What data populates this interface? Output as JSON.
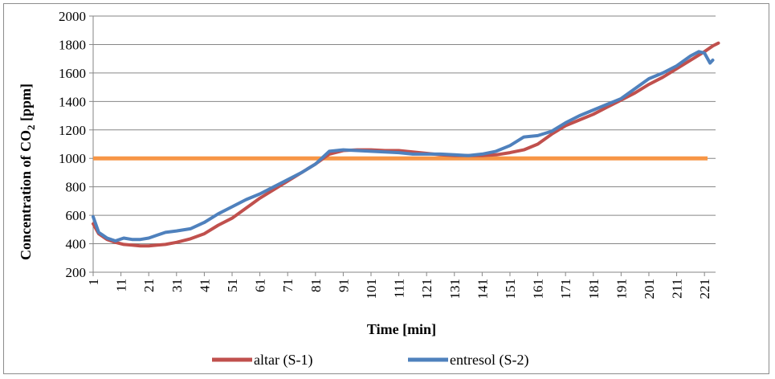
{
  "chart_data": {
    "type": "line",
    "xlabel": "Time [min]",
    "ylabel_main": "Concentration of CO",
    "ylabel_sub": "2",
    "ylabel_unit": " [ppm]",
    "ylim": [
      200,
      2000
    ],
    "yticks": [
      200,
      400,
      600,
      800,
      1000,
      1200,
      1400,
      1600,
      1800,
      2000
    ],
    "xlim": [
      1,
      225
    ],
    "xticks": [
      "1",
      "11",
      "21",
      "31",
      "41",
      "51",
      "61",
      "71",
      "81",
      "91",
      "101",
      "111",
      "121",
      "131",
      "141",
      "151",
      "161",
      "171",
      "181",
      "191",
      "201",
      "211",
      "221"
    ],
    "grid": true,
    "legend_position": "bottom",
    "threshold": {
      "value": 1000,
      "color": "#f79646"
    },
    "series": [
      {
        "name": "altar (S-1)",
        "color": "#c0504d",
        "x": [
          1,
          3,
          6,
          9,
          12,
          15,
          18,
          21,
          24,
          27,
          31,
          36,
          41,
          46,
          51,
          56,
          61,
          66,
          71,
          76,
          81,
          86,
          91,
          96,
          101,
          106,
          111,
          116,
          121,
          126,
          131,
          136,
          141,
          146,
          151,
          156,
          161,
          166,
          171,
          176,
          181,
          186,
          191,
          196,
          201,
          206,
          211,
          216,
          221,
          224,
          226
        ],
        "values": [
          540,
          470,
          430,
          410,
          395,
          390,
          385,
          385,
          390,
          395,
          410,
          435,
          470,
          530,
          580,
          650,
          720,
          780,
          840,
          900,
          960,
          1030,
          1055,
          1060,
          1060,
          1055,
          1055,
          1045,
          1035,
          1025,
          1020,
          1020,
          1020,
          1025,
          1040,
          1060,
          1100,
          1170,
          1230,
          1270,
          1310,
          1360,
          1410,
          1460,
          1520,
          1570,
          1630,
          1690,
          1750,
          1790,
          1810
        ]
      },
      {
        "name": "entresol (S-2)",
        "color": "#4f81bd",
        "x": [
          1,
          3,
          6,
          9,
          12,
          15,
          18,
          21,
          24,
          27,
          31,
          36,
          41,
          46,
          51,
          56,
          61,
          66,
          71,
          76,
          81,
          86,
          91,
          96,
          101,
          106,
          111,
          116,
          121,
          126,
          131,
          136,
          141,
          146,
          151,
          156,
          161,
          166,
          171,
          176,
          181,
          186,
          191,
          196,
          201,
          206,
          211,
          216,
          219,
          221,
          223,
          224
        ],
        "values": [
          590,
          480,
          440,
          420,
          440,
          430,
          430,
          440,
          460,
          480,
          490,
          505,
          550,
          610,
          660,
          710,
          750,
          800,
          850,
          900,
          960,
          1050,
          1060,
          1055,
          1050,
          1045,
          1040,
          1030,
          1030,
          1030,
          1025,
          1020,
          1030,
          1050,
          1090,
          1150,
          1160,
          1190,
          1250,
          1300,
          1340,
          1380,
          1420,
          1490,
          1560,
          1600,
          1650,
          1720,
          1750,
          1740,
          1670,
          1690
        ]
      }
    ]
  }
}
